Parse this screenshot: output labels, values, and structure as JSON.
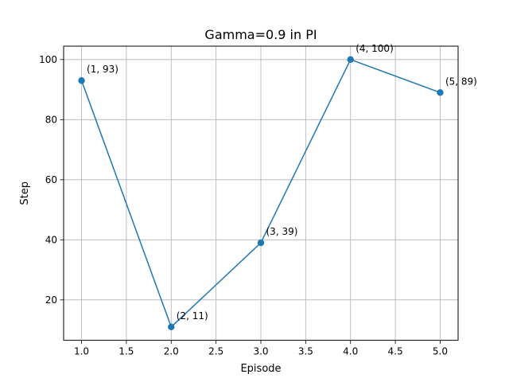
{
  "chart_data": {
    "type": "line",
    "title": "Gamma=0.9 in PI",
    "xlabel": "Episode",
    "ylabel": "Step",
    "x": [
      1,
      2,
      3,
      4,
      5
    ],
    "series": [
      {
        "values": [
          93,
          11,
          39,
          100,
          89
        ],
        "color": "#1f77b4",
        "marker": "circle"
      }
    ],
    "point_labels": [
      "(1, 93)",
      "(2, 11)",
      "(3, 39)",
      "(4, 100)",
      "(5, 89)"
    ],
    "xlim": [
      0.8,
      5.2
    ],
    "ylim": [
      6.55,
      104.45
    ],
    "xticks": [
      1.0,
      1.5,
      2.0,
      2.5,
      3.0,
      3.5,
      4.0,
      4.5,
      5.0
    ],
    "xtick_labels": [
      "1.0",
      "1.5",
      "2.0",
      "2.5",
      "3.0",
      "3.5",
      "4.0",
      "4.5",
      "5.0"
    ],
    "yticks": [
      20,
      40,
      60,
      80,
      100
    ],
    "ytick_labels": [
      "20",
      "40",
      "60",
      "80",
      "100"
    ],
    "grid": true,
    "legend": "none"
  }
}
